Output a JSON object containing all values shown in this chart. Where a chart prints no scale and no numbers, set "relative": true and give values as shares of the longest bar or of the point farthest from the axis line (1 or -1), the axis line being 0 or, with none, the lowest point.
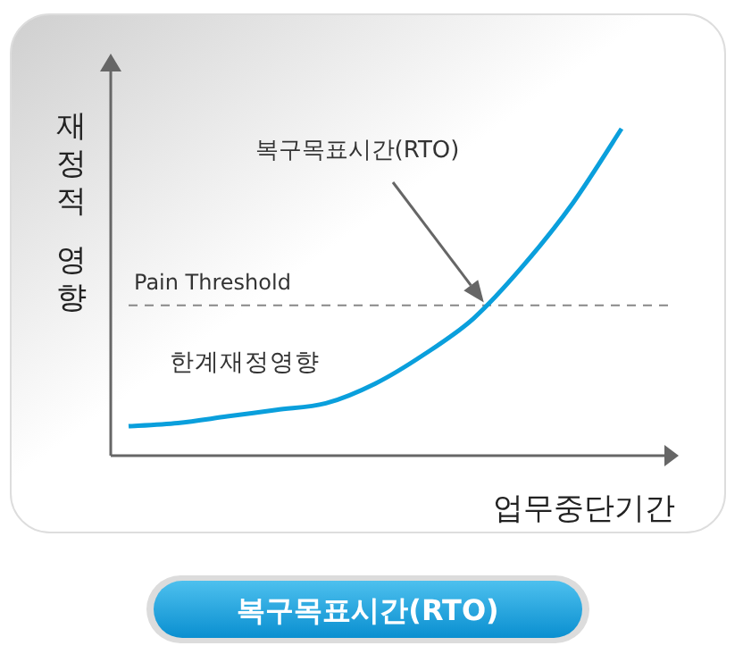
{
  "chart_data": {
    "type": "line",
    "relative": true,
    "xlabel": "업무중단기간",
    "ylabel": "재정적 영향",
    "categories": [
      null,
      null,
      null,
      null,
      null,
      null,
      null,
      null,
      null,
      null,
      null
    ],
    "series": [
      {
        "color": "#0a9fdc",
        "values": [
          0.09,
          0.1,
          0.12,
          0.14,
          0.16,
          0.22,
          0.31,
          0.42,
          0.58,
          0.77,
          1.0
        ]
      }
    ],
    "ref_lines": [
      {
        "axis": "y",
        "value": 0.46,
        "label": "Pain Threshold",
        "color": "#888888",
        "line_style": "dashed"
      }
    ],
    "annotations": [
      "복구목표시간(RTO)",
      "한계재정영향",
      "복구목표시간(RTO)"
    ],
    "grid": false,
    "marker": "none",
    "line_style": "solid"
  }
}
